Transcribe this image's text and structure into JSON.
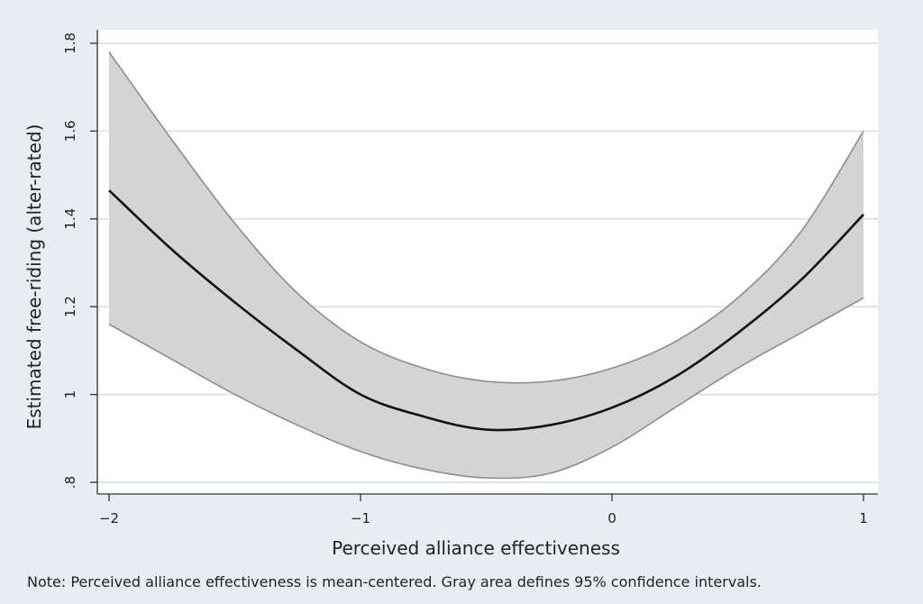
{
  "chart_data": {
    "type": "line",
    "xlabel": "Perceived alliance effectiveness",
    "ylabel": "Estimated free-riding (alter-rated)",
    "xlim": [
      -2,
      1
    ],
    "ylim": [
      0.8,
      1.8
    ],
    "x_ticks": [
      {
        "value": -2,
        "label": "−2"
      },
      {
        "value": -1,
        "label": "−1"
      },
      {
        "value": 0,
        "label": "0"
      },
      {
        "value": 1,
        "label": "1"
      }
    ],
    "y_ticks": [
      {
        "value": 0.8,
        "label": ".8"
      },
      {
        "value": 1.0,
        "label": "1"
      },
      {
        "value": 1.2,
        "label": "1.2"
      },
      {
        "value": 1.4,
        "label": "1.4"
      },
      {
        "value": 1.6,
        "label": "1.6"
      },
      {
        "value": 1.8,
        "label": "1.8"
      }
    ],
    "grid": true,
    "series": [
      {
        "role": "estimate",
        "x": [
          -2,
          -1.75,
          -1.5,
          -1.25,
          -1,
          -0.75,
          -0.5,
          -0.25,
          0,
          0.25,
          0.5,
          0.75,
          1
        ],
        "y": [
          1.465,
          1.33,
          1.21,
          1.1,
          1.0,
          0.95,
          0.92,
          0.93,
          0.97,
          1.04,
          1.14,
          1.26,
          1.41
        ]
      },
      {
        "role": "ci_upper",
        "x": [
          -2,
          -1.75,
          -1.5,
          -1.25,
          -1,
          -0.75,
          -0.5,
          -0.25,
          0,
          0.25,
          0.5,
          0.75,
          1
        ],
        "y": [
          1.78,
          1.58,
          1.39,
          1.23,
          1.12,
          1.06,
          1.03,
          1.03,
          1.06,
          1.12,
          1.22,
          1.37,
          1.6
        ]
      },
      {
        "role": "ci_lower",
        "x": [
          -2,
          -1.75,
          -1.5,
          -1.25,
          -1,
          -0.75,
          -0.5,
          -0.25,
          0,
          0.25,
          0.5,
          0.75,
          1
        ],
        "y": [
          1.16,
          1.08,
          1.0,
          0.93,
          0.87,
          0.83,
          0.81,
          0.82,
          0.88,
          0.97,
          1.06,
          1.14,
          1.22
        ]
      }
    ],
    "colors": {
      "band": "#d4d4d4",
      "band_edge": "#8c8c8c",
      "line": "#111111",
      "grid": "#dde4ec",
      "plot_bg": "#ffffff",
      "outer_bg": "#e8edf3"
    }
  },
  "note": "Note: Perceived alliance effectiveness is mean-centered. Gray area defines 95% confidence intervals."
}
